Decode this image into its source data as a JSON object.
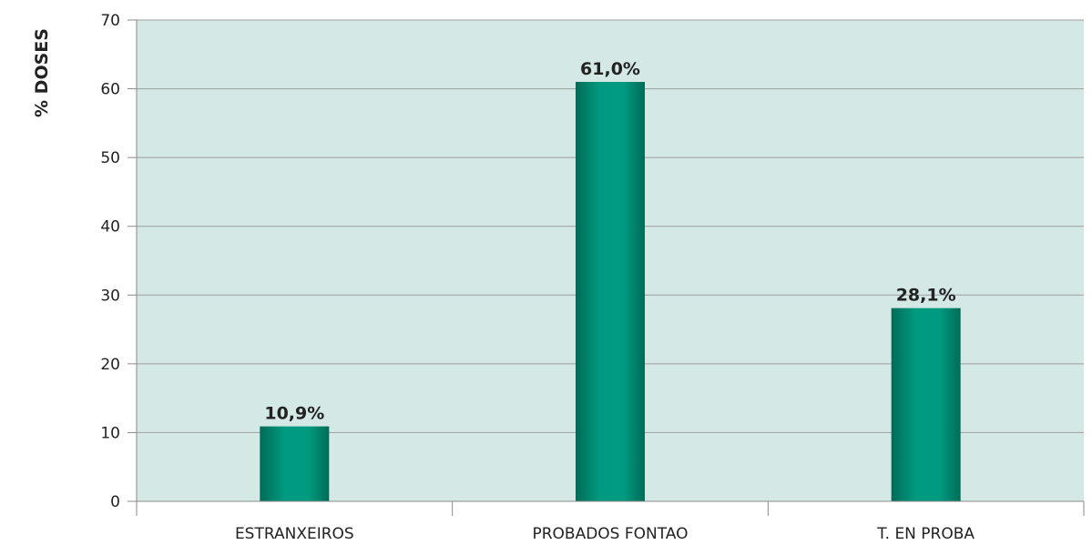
{
  "chart_data": {
    "type": "bar",
    "title": "",
    "xlabel": "",
    "ylabel": "% DOSES",
    "categories": [
      "ESTRANXEIROS",
      "PROBADOS FONTAO",
      "T. EN PROBA"
    ],
    "values": [
      10.9,
      61.0,
      28.1
    ],
    "data_labels": [
      "10,9%",
      "61,0%",
      "28,1%"
    ],
    "ylim": [
      0,
      70
    ],
    "yticks": [
      0,
      10,
      20,
      30,
      40,
      50,
      60,
      70
    ],
    "grid": true,
    "legend": "none",
    "colors": {
      "plot_background": "#d4e9e5",
      "bar_dark": "#006b57",
      "bar_light": "#009a80",
      "gridline": "#9e9e9e",
      "axis": "#8a8a8a"
    }
  }
}
